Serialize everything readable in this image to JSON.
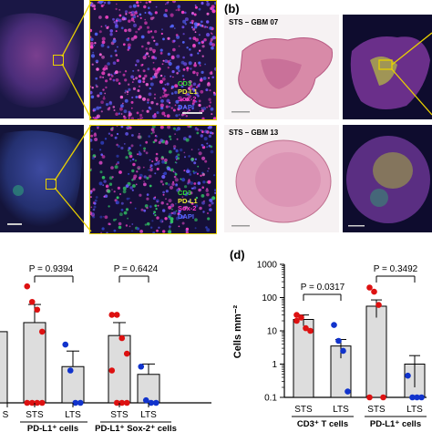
{
  "panel_b": {
    "letter": "(b)",
    "top_title": "STS – GBM 07",
    "bottom_title": "STS – GBM 13"
  },
  "panel_a": {
    "stain_top": [
      "CD3",
      "PD-L1",
      "Sox-2",
      "DAPI"
    ],
    "stain_bottom": [
      "CD3",
      "PD-L1",
      "Sox-2",
      "DAPI"
    ],
    "colors": {
      "CD3": "#33dd33",
      "PD-L1": "#eeee33",
      "Sox-2": "#ff33cc",
      "DAPI": "#5566ff"
    }
  },
  "panel_c": {
    "p_values": [
      "P = 0.9394",
      "P = 0.6424"
    ],
    "group_labels": [
      "STS",
      "LTS",
      "STS",
      "LTS"
    ],
    "cell_labels": [
      "PD-L1⁺ cells",
      "PD-L1⁺ Sox-2⁺ cells"
    ],
    "edge_label": "S"
  },
  "panel_d": {
    "letter": "(d)",
    "ylabel": "Cells mm⁻²",
    "p_values": [
      "P = 0.0317",
      "P = 0.3492"
    ],
    "group_labels": [
      "STS",
      "LTS",
      "STS",
      "LTS"
    ],
    "cell_labels": [
      "CD3⁺ T cells",
      "PD-L1⁺ cells"
    ]
  },
  "chart_data": [
    {
      "type": "bar",
      "categories": [
        "PD-L1⁺ cells STS",
        "PD-L1⁺ cells LTS",
        "PD-L1⁺ Sox-2⁺ cells STS",
        "PD-L1⁺ Sox-2⁺ cells LTS"
      ],
      "values": [
        0.62,
        0.28,
        0.52,
        0.22
      ],
      "points_sts_1": [
        0.9,
        0.78,
        0.72,
        0.55,
        0.0,
        0.0,
        0.0,
        0.0
      ],
      "points_lts_1": [
        0.45,
        0.25,
        0.0,
        0.0
      ],
      "points_sts_2": [
        0.68,
        0.68,
        0.5,
        0.38,
        0.25,
        0.0,
        0.0,
        0.0
      ],
      "points_lts_2": [
        0.28,
        0.02,
        0.0,
        0.0
      ],
      "annotations": [
        "P = 0.9394",
        "P = 0.6424"
      ]
    },
    {
      "type": "bar",
      "categories": [
        "CD3⁺ T cells STS",
        "CD3⁺ T cells LTS",
        "PD-L1⁺ cells STS",
        "PD-L1⁺ cells LTS"
      ],
      "values": [
        22,
        3.5,
        55,
        1.0
      ],
      "errors": [
        8,
        2,
        30,
        0.8
      ],
      "points": {
        "CD3 STS": [
          30,
          25,
          12,
          10,
          20
        ],
        "CD3 LTS": [
          15,
          5,
          2.5,
          0.15
        ],
        "PD-L1 STS": [
          200,
          150,
          60,
          0.1,
          0.1
        ],
        "PD-L1 LTS": [
          0.45,
          0.1,
          0.1,
          0.1
        ]
      },
      "ylabel": "Cells mm⁻²",
      "ylim": [
        0.1,
        1000
      ],
      "yscale": "log",
      "yticks": [
        "0.1",
        "1",
        "10",
        "100",
        "1000"
      ],
      "annotations": [
        "P = 0.0317",
        "P = 0.3492"
      ]
    }
  ]
}
